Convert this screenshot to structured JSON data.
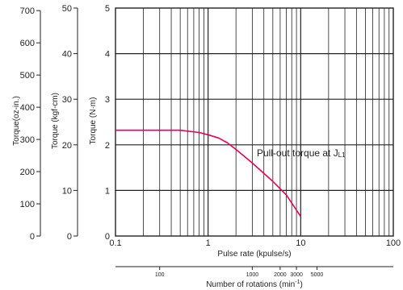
{
  "chart_data": {
    "type": "line",
    "xscale": "log",
    "xlim": [
      0.1,
      100
    ],
    "ylim": [
      0,
      5
    ],
    "grid": true,
    "xlabel": "Pulse rate (kpulse/s)",
    "x_ticks": [
      "0.1",
      "1",
      "10",
      "100"
    ],
    "y_axes": [
      {
        "label": "Torque (N·m)",
        "ticks": [
          "0",
          "1",
          "2",
          "3",
          "4",
          "5"
        ],
        "values": [
          0,
          1,
          2,
          3,
          4,
          5
        ]
      },
      {
        "label": "Torque (kgf-cm)",
        "ticks": [
          "0",
          "10",
          "20",
          "30",
          "40",
          "50"
        ],
        "values": [
          0,
          10,
          20,
          30,
          40,
          50
        ]
      },
      {
        "label": "Torque(oz-in.)",
        "ticks": [
          "0",
          "100",
          "200",
          "300",
          "400",
          "500",
          "600",
          "700"
        ],
        "values": [
          0,
          100,
          200,
          300,
          400,
          500,
          600,
          700
        ]
      }
    ],
    "series": [
      {
        "name": "Pull-out torque at JL1",
        "color": "#e8005a",
        "x": [
          0.1,
          0.2,
          0.3,
          0.5,
          0.8,
          1.0,
          1.3,
          1.6,
          2.0,
          3.0,
          5.0,
          7.0,
          10.0
        ],
        "y": [
          2.32,
          2.32,
          2.32,
          2.32,
          2.27,
          2.22,
          2.15,
          2.05,
          1.9,
          1.6,
          1.2,
          0.9,
          0.43
        ]
      }
    ],
    "annotation": {
      "text": "Pull-out torque at J",
      "subscript": "L1"
    },
    "secondary_x_axis": {
      "label": "Number of rotations (min",
      "label_superscript": "-1",
      "label_suffix": ")",
      "ticks": [
        {
          "label": "100",
          "pulse": 0.3
        },
        {
          "label": "1000",
          "pulse": 3
        },
        {
          "label": "2000",
          "pulse": 6
        },
        {
          "label": "3000",
          "pulse": 9
        },
        {
          "label": "5000",
          "pulse": 15
        }
      ]
    }
  }
}
